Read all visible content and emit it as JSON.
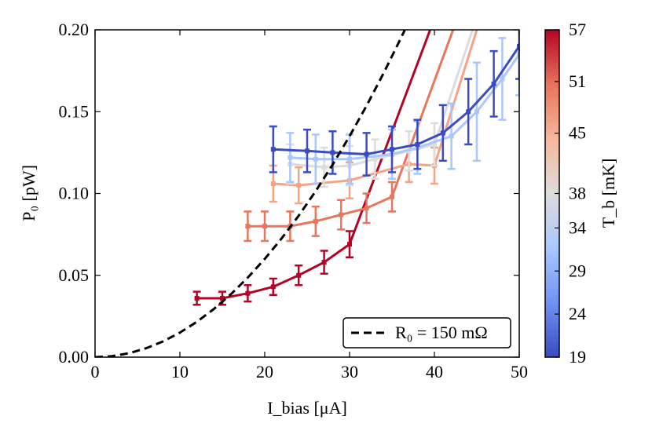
{
  "chart_data": {
    "type": "line",
    "xlabel": "I_bias [μA]",
    "ylabel": "P₀ [pW]",
    "xlim": [
      0,
      50
    ],
    "xticks": [
      0,
      10,
      20,
      30,
      40,
      50
    ],
    "ylim": [
      0,
      0.2
    ],
    "yticks": [
      {
        "value": 0,
        "label": "0.00"
      },
      {
        "value": 0.05,
        "label": "0.05"
      },
      {
        "value": 0.1,
        "label": "0.10"
      },
      {
        "value": 0.15,
        "label": "0.15"
      },
      {
        "value": 0.2,
        "label": "0.20"
      }
    ],
    "legend": "lower right",
    "series": [
      {
        "color": "#b40426",
        "x": [
          12,
          15,
          18,
          21,
          24,
          27,
          30,
          39.5
        ],
        "values": [
          0.036,
          0.036,
          0.039,
          0.043,
          0.05,
          0.058,
          0.069,
          0.2
        ],
        "errors": [
          0.004,
          0.004,
          0.005,
          0.005,
          0.006,
          0.007,
          0.008,
          null
        ]
      },
      {
        "color": "#e8765c",
        "x": [
          18,
          20,
          23,
          26,
          29,
          32,
          35,
          42.2
        ],
        "values": [
          0.08,
          0.08,
          0.08,
          0.083,
          0.087,
          0.091,
          0.098,
          0.2
        ],
        "errors": [
          0.009,
          0.009,
          0.009,
          0.009,
          0.009,
          0.009,
          0.009,
          null
        ]
      },
      {
        "color": "#f6a385",
        "x": [
          21,
          24,
          30,
          37,
          40,
          45
        ],
        "values": [
          0.106,
          0.105,
          0.108,
          0.118,
          0.117,
          0.2
        ],
        "errors": [
          0.011,
          0.011,
          0.011,
          0.011,
          0.011,
          null
        ]
      },
      {
        "color": "#dddcdc",
        "x": [
          23,
          27,
          30,
          33,
          37,
          40,
          44.5
        ],
        "values": [
          0.118,
          0.116,
          0.117,
          0.121,
          0.126,
          0.13,
          0.2
        ],
        "errors": [
          0.012,
          0.012,
          0.012,
          0.012,
          0.012,
          0.013,
          null
        ]
      },
      {
        "color": "#aac7fd",
        "x": [
          23,
          26,
          30,
          35,
          38,
          42,
          45,
          48,
          50
        ],
        "values": [
          0.122,
          0.121,
          0.121,
          0.124,
          0.128,
          0.135,
          0.15,
          0.17,
          0.185
        ],
        "errors": [
          0.015,
          0.015,
          0.015,
          0.015,
          0.016,
          0.02,
          0.03,
          0.025,
          0.025
        ]
      },
      {
        "color": "#3b4cc0",
        "x": [
          21,
          25,
          28,
          32,
          35,
          38,
          41,
          44,
          47,
          50
        ],
        "values": [
          0.127,
          0.126,
          0.125,
          0.124,
          0.127,
          0.13,
          0.137,
          0.15,
          0.167,
          0.19
        ],
        "errors": [
          0.014,
          0.013,
          0.013,
          0.013,
          0.014,
          0.015,
          0.017,
          0.02,
          0.02,
          0.02
        ]
      },
      {
        "name": "R₀ = 150 mΩ",
        "color": "#000000",
        "dashed": true,
        "x": [
          0,
          2,
          4,
          6,
          8,
          10,
          12,
          14,
          16,
          18,
          20,
          22,
          24,
          26,
          28,
          30,
          32,
          34,
          36,
          36.5
        ],
        "values": [
          0,
          0.0006,
          0.0024,
          0.0054,
          0.0096,
          0.015,
          0.0216,
          0.0294,
          0.0384,
          0.0486,
          0.06,
          0.0726,
          0.0864,
          0.1014,
          0.1176,
          0.135,
          0.1536,
          0.1734,
          0.1944,
          0.1998
        ]
      }
    ],
    "colorbar": {
      "label": "T_b [mK]",
      "lim": [
        19,
        57
      ],
      "ticks": [
        19,
        24,
        29,
        34,
        38,
        45,
        51,
        57
      ],
      "colors": [
        "#3b4cc0",
        "#6f92f3",
        "#aac7fd",
        "#dddcdc",
        "#f7b89c",
        "#e7745b",
        "#b40426"
      ]
    }
  }
}
